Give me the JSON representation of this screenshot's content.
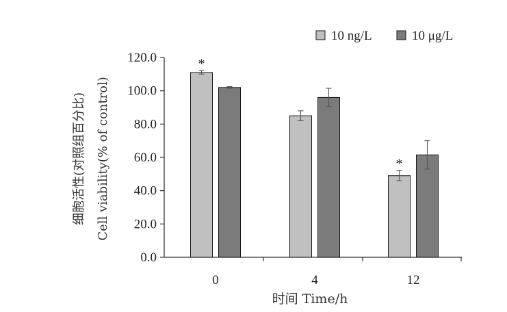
{
  "chart_data": {
    "type": "bar",
    "categories": [
      "0",
      "4",
      "12"
    ],
    "series": [
      {
        "name": "10 ng/L",
        "color": "#c0c0c0",
        "values": [
          111,
          85,
          49
        ],
        "errors": [
          1,
          3,
          3
        ]
      },
      {
        "name": "10 μg/L",
        "color": "#7b7b7b",
        "values": [
          102,
          96,
          61.5
        ],
        "errors": [
          0.5,
          5.5,
          8.5
        ]
      }
    ],
    "significance": [
      {
        "category": "0",
        "series": "10 ng/L",
        "mark": "*"
      },
      {
        "category": "12",
        "series": "10 ng/L",
        "mark": "*"
      }
    ],
    "title": "",
    "xlabel": "时间 Time/h",
    "ylabel_cn": "细胞活性(对照组百分比)",
    "ylabel_en": "Cell viability(% of control)",
    "ylim": [
      0,
      120
    ],
    "yticks": [
      "0.0",
      "20.0",
      "40.0",
      "60.0",
      "80.0",
      "100.0",
      "120.0"
    ],
    "grid": false,
    "legend_position": "top-right"
  }
}
